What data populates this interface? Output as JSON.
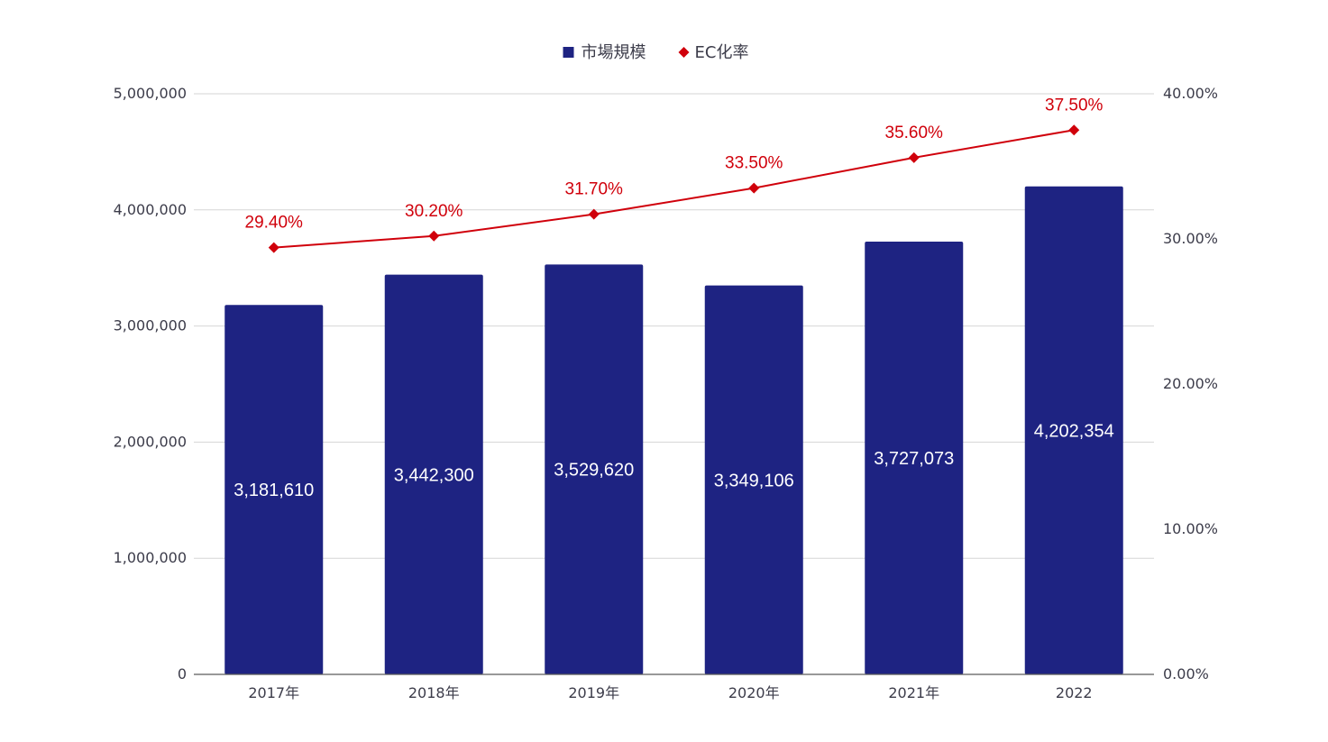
{
  "colors": {
    "bar": "#1e2382",
    "line": "#d0000b",
    "grid": "#d6d6d6",
    "axis": "#5a5a5a"
  },
  "legend": {
    "items": [
      {
        "label": "市場規模",
        "marker": "square",
        "color": "#1e2382"
      },
      {
        "label": "EC化率",
        "marker": "diamond",
        "color": "#d0000b"
      }
    ],
    "position": "top-center"
  },
  "chart_data": {
    "type": "bar",
    "categories": [
      "2017年",
      "2018年",
      "2019年",
      "2020年",
      "2021年",
      "2022"
    ],
    "series": [
      {
        "name": "市場規模",
        "type": "bar",
        "axis": "left",
        "values": [
          3181610,
          3442300,
          3529620,
          3349106,
          3727073,
          4202354
        ],
        "labels": [
          "3,181,610",
          "3,442,300",
          "3,529,620",
          "3,349,106",
          "3,727,073",
          "4,202,354"
        ]
      },
      {
        "name": "EC化率",
        "type": "line",
        "axis": "right",
        "values": [
          29.4,
          30.2,
          31.7,
          33.5,
          35.6,
          37.5
        ],
        "labels": [
          "29.40%",
          "30.20%",
          "31.70%",
          "33.50%",
          "35.60%",
          "37.50%"
        ]
      }
    ],
    "y_left": {
      "range": [
        0,
        5000000
      ],
      "ticks": [
        0,
        1000000,
        2000000,
        3000000,
        4000000,
        5000000
      ],
      "tick_labels": [
        "0",
        "1,000,000",
        "2,000,000",
        "3,000,000",
        "4,000,000",
        "5,000,000"
      ]
    },
    "y_right": {
      "range": [
        0,
        40
      ],
      "ticks": [
        0,
        10,
        20,
        30,
        40
      ],
      "tick_labels": [
        "0.00%",
        "10.00%",
        "20.00%",
        "30.00%",
        "40.00%"
      ]
    },
    "grid": true,
    "title": "",
    "xlabel": "",
    "ylabel": ""
  }
}
